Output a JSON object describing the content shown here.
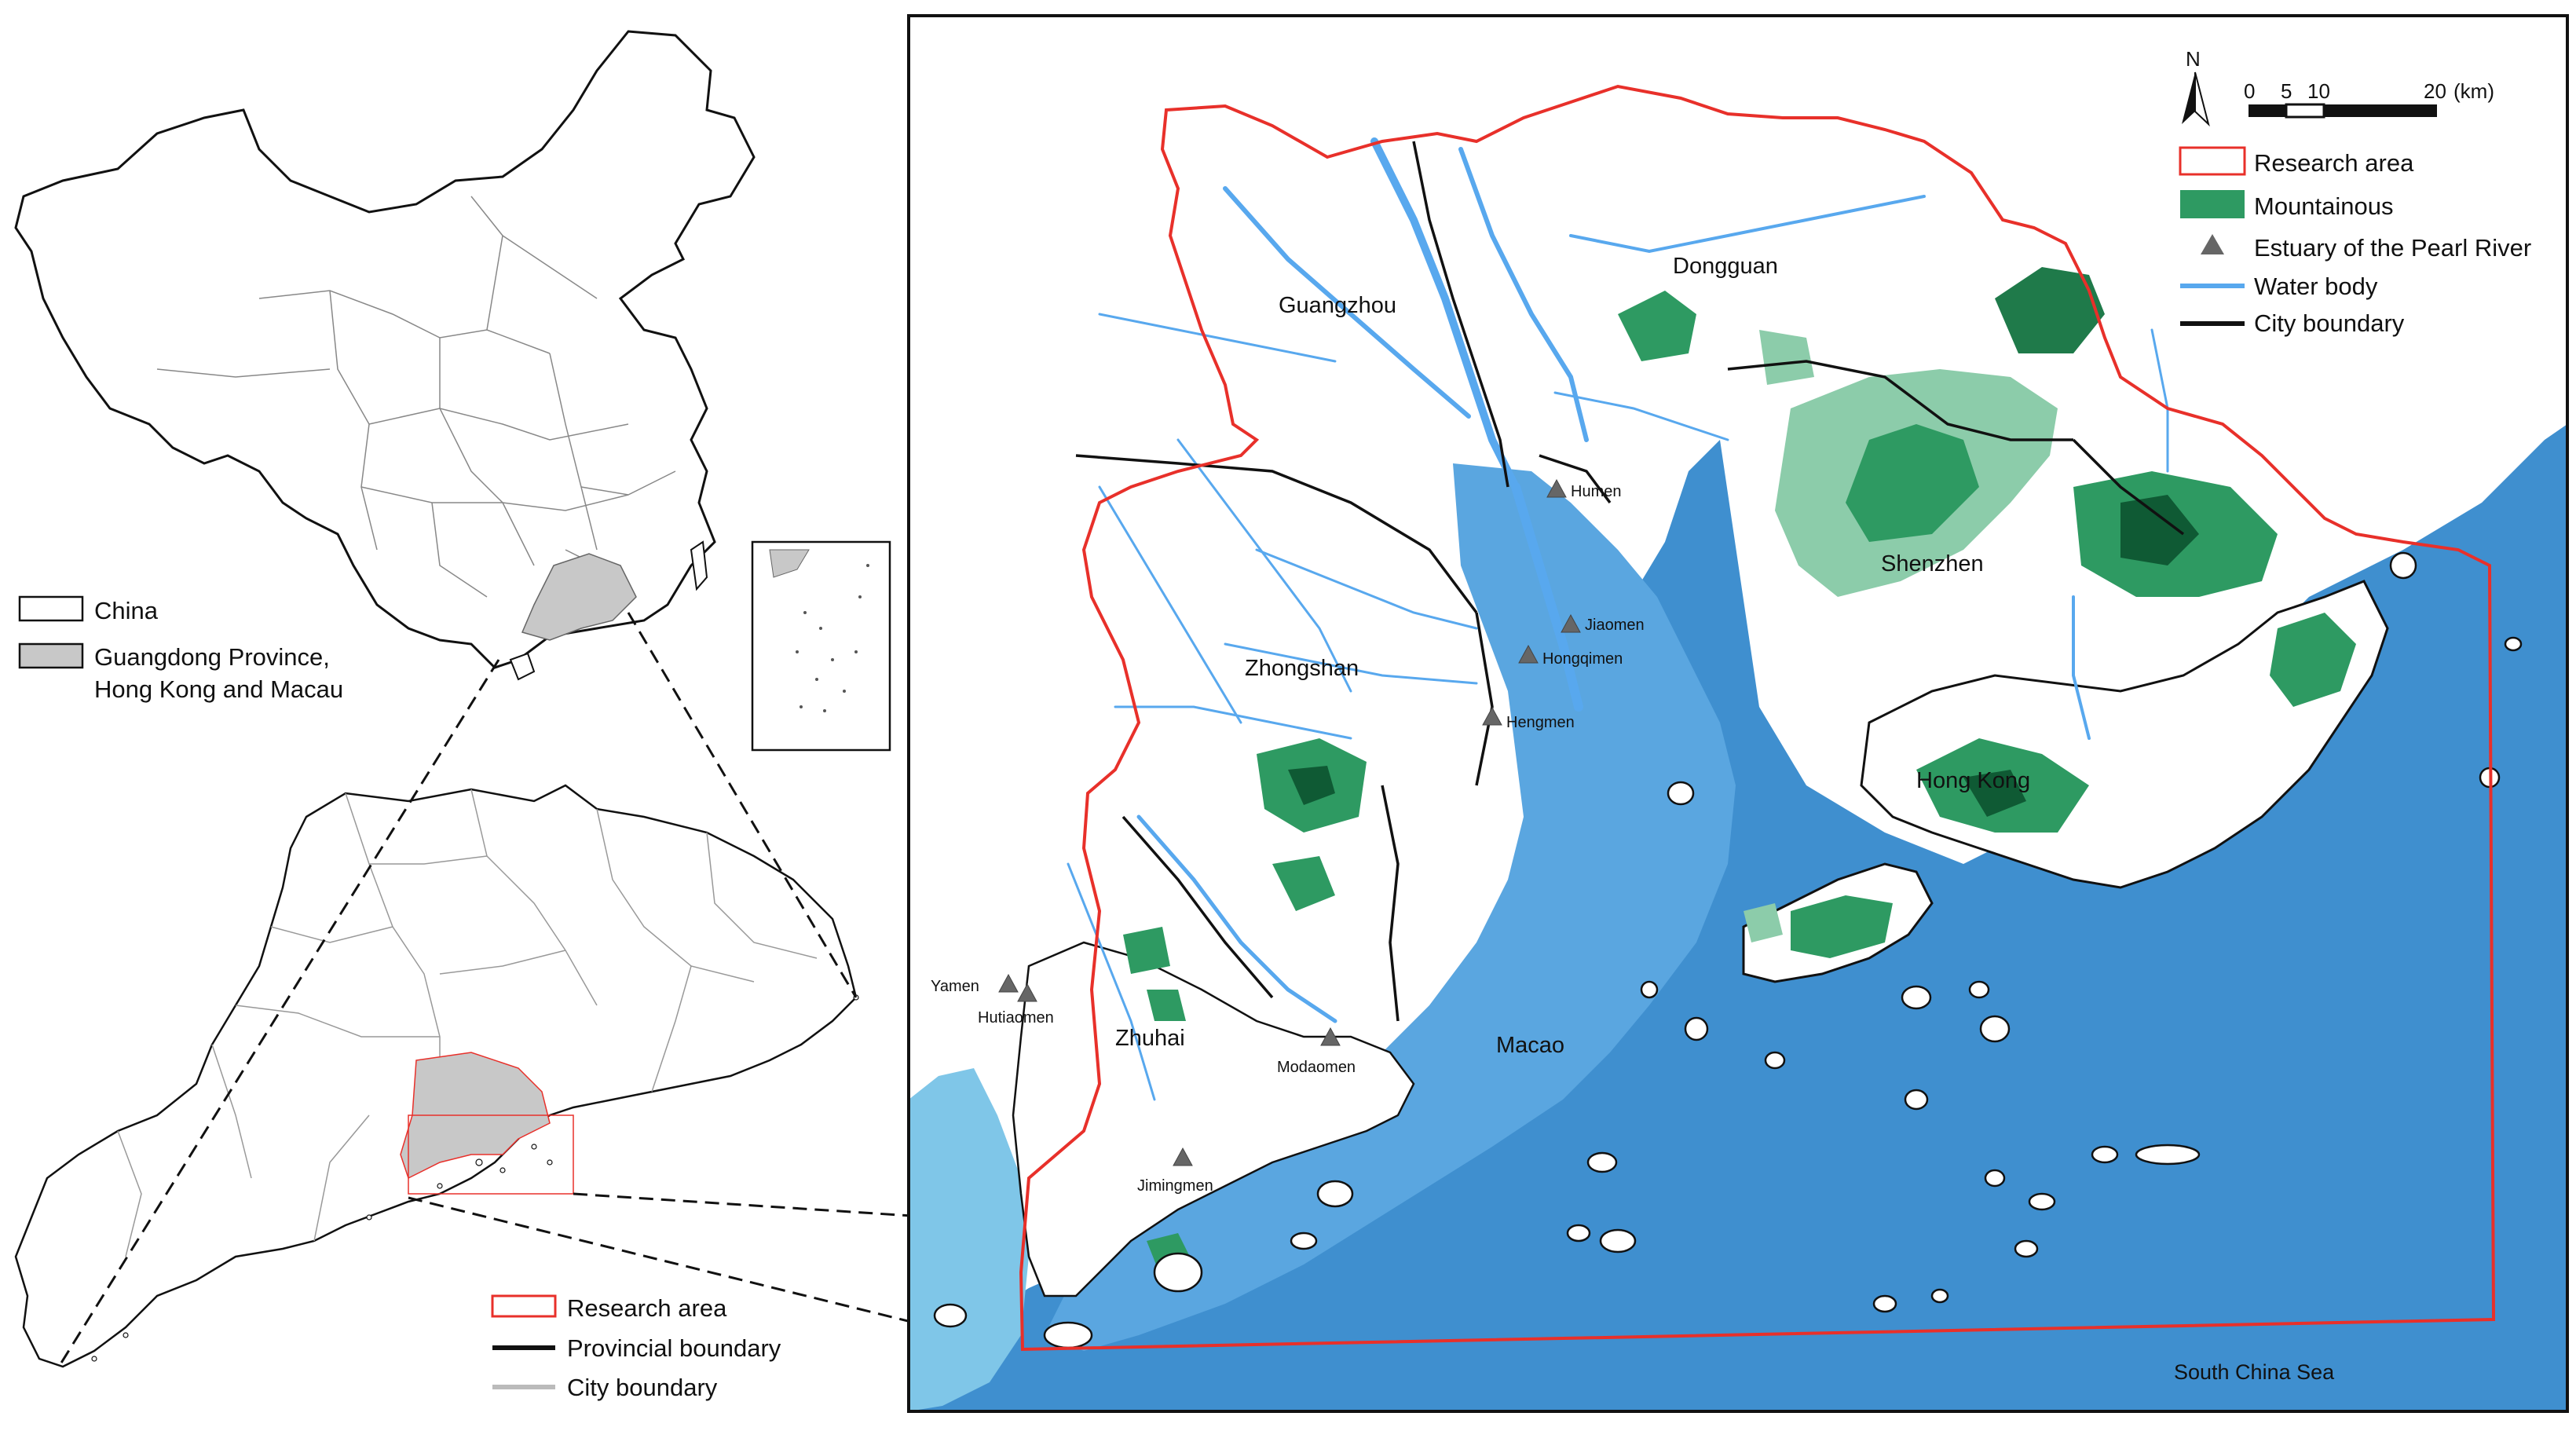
{
  "left_legend": {
    "items": [
      {
        "label": "China"
      },
      {
        "label": "Guangdong Province,"
      },
      {
        "label": "Hong Kong and Macau"
      }
    ]
  },
  "bottom_legend": {
    "items": [
      {
        "label": "Research area"
      },
      {
        "label": "Provincial boundary"
      },
      {
        "label": "City boundary"
      }
    ]
  },
  "map_legend": {
    "items": [
      {
        "label": "Research area"
      },
      {
        "label": "Mountainous"
      },
      {
        "label": "Estuary of the Pearl River"
      },
      {
        "label": "Water body"
      },
      {
        "label": "City boundary"
      }
    ]
  },
  "north_arrow": {
    "label": "N"
  },
  "scale_bar": {
    "ticks": [
      "0",
      "5",
      "10",
      "20"
    ],
    "unit": "(km)"
  },
  "cities": [
    "Dongguan",
    "Guangzhou",
    "Shenzhen",
    "Zhongshan",
    "Hong Kong",
    "Zhuhai",
    "Macao"
  ],
  "estuaries": [
    "Humen",
    "Jiaomen",
    "Hongqimen",
    "Hengmen",
    "Yamen",
    "Hutiaomen",
    "Modaomen",
    "Jimingmen"
  ],
  "sea_label": "South China Sea",
  "colors": {
    "sea": "#3f8fcf",
    "shallow": "#6fb4e6",
    "river": "#58a8ee",
    "mountain": "#2e9a62",
    "mountain_light": "#8cccaa",
    "research_area": "#e8302a",
    "province_fill": "#c8c8c8"
  }
}
